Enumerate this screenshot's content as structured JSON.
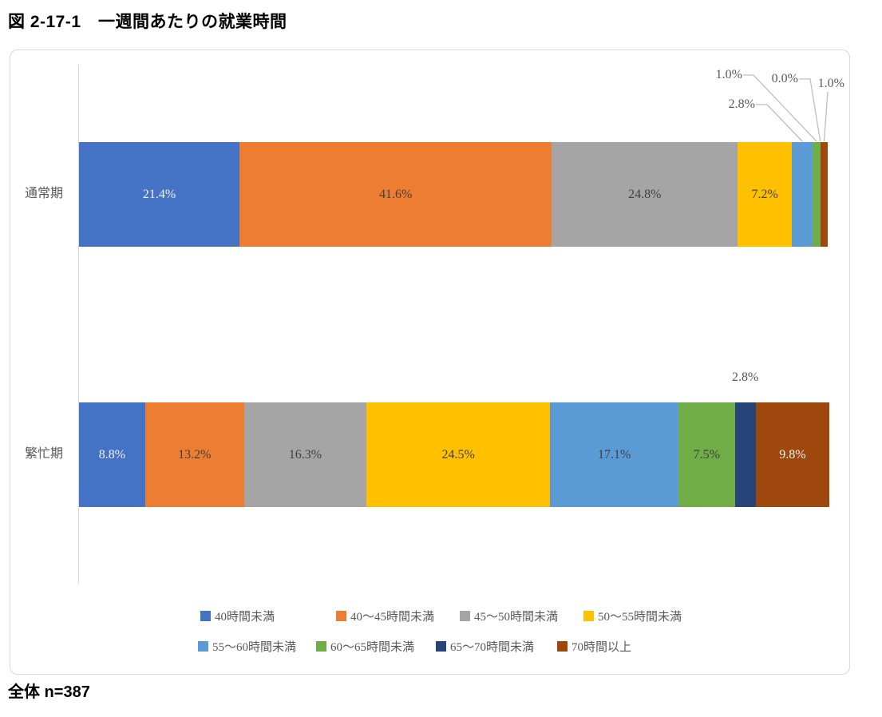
{
  "page": {
    "title": "図 2-17-1　一週間あたりの就業時間",
    "footer": "全体 n=387"
  },
  "chart_data": {
    "type": "bar",
    "subtype": "horizontal_stacked_100pct",
    "title": "図 2-17-1　一週間あたりの就業時間",
    "categories": [
      "通常期",
      "繁忙期"
    ],
    "series": [
      {
        "name": "40時間未満",
        "color": "#4472C4",
        "values": [
          21.4,
          8.8
        ]
      },
      {
        "name": "40〜45時間未満",
        "color": "#ED7D31",
        "values": [
          41.6,
          13.2
        ]
      },
      {
        "name": "45〜50時間未満",
        "color": "#A5A5A5",
        "values": [
          24.8,
          16.3
        ]
      },
      {
        "name": "50〜55時間未満",
        "color": "#FFC000",
        "values": [
          7.2,
          24.5
        ]
      },
      {
        "name": "55〜60時間未満",
        "color": "#5B9BD5",
        "values": [
          2.8,
          17.1
        ]
      },
      {
        "name": "60〜65時間未満",
        "color": "#70AD47",
        "values": [
          1.0,
          7.5
        ]
      },
      {
        "name": "65〜70時間未満",
        "color": "#264478",
        "values": [
          0.0,
          2.8
        ]
      },
      {
        "name": "70時間以上",
        "color": "#9E480E",
        "values": [
          1.0,
          9.8
        ]
      }
    ],
    "value_format": "0.0%",
    "xlim": [
      0,
      100
    ],
    "grid": false,
    "legend_position": "bottom",
    "legend_rows": [
      [
        "40時間未満",
        "40〜45時間未満",
        "45〜50時間未満",
        "50〜55時間未満"
      ],
      [
        "55〜60時間未満",
        "60〜65時間未満",
        "65〜70時間未満",
        "70時間以上"
      ]
    ],
    "colors": {
      "label_light": "#F2F2F2",
      "label_dark": "#404040",
      "label_outside": "#595959",
      "leader_line": "#BFBFBF",
      "axis_line": "#D9D9D9",
      "frame_border": "#D9D9D9"
    }
  }
}
